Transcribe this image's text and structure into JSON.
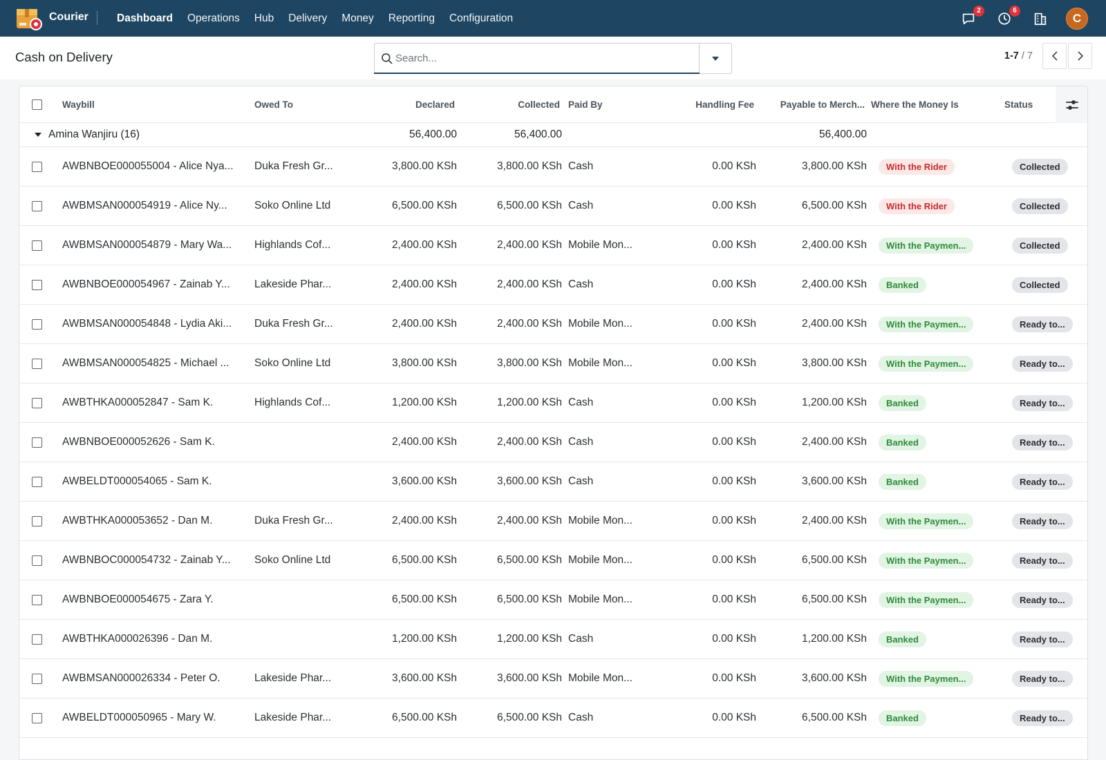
{
  "app": {
    "name": "Courier",
    "menu": [
      "Dashboard",
      "Operations",
      "Hub",
      "Delivery",
      "Money",
      "Reporting",
      "Configuration"
    ],
    "active_menu": "Dashboard",
    "systray": {
      "messages_count": "2",
      "activities_count": "6",
      "avatar_initial": "C"
    }
  },
  "control": {
    "title": "Cash on Delivery",
    "search_placeholder": "Search...",
    "pager_range": "1-7",
    "pager_total": "/ 7"
  },
  "columns": [
    "Waybill",
    "Owed To",
    "Declared",
    "Collected",
    "Paid By",
    "Handling Fee",
    "Payable to Merch...",
    "Where the Money Is",
    "Status"
  ],
  "group": {
    "label": "Amina Wanjiru (16)",
    "declared": "56,400.00",
    "collected": "56,400.00",
    "payable": "56,400.00"
  },
  "rows": [
    {
      "waybill": "AWBNBOE000055004 - Alice Nya...",
      "owed_to": "Duka Fresh Gr...",
      "declared": "3,800.00 KSh",
      "collected": "3,800.00 KSh",
      "paid_by": "Cash",
      "fee": "0.00 KSh",
      "payable": "3,800.00 KSh",
      "where": "With the Rider",
      "where_tone": "red",
      "status": "Collected"
    },
    {
      "waybill": "AWBMSAN000054919 - Alice Ny...",
      "owed_to": "Soko Online Ltd",
      "declared": "6,500.00 KSh",
      "collected": "6,500.00 KSh",
      "paid_by": "Cash",
      "fee": "0.00 KSh",
      "payable": "6,500.00 KSh",
      "where": "With the Rider",
      "where_tone": "red",
      "status": "Collected"
    },
    {
      "waybill": "AWBMSAN000054879 - Mary Wa...",
      "owed_to": "Highlands Cof...",
      "declared": "2,400.00 KSh",
      "collected": "2,400.00 KSh",
      "paid_by": "Mobile Mon...",
      "fee": "0.00 KSh",
      "payable": "2,400.00 KSh",
      "where": "With the Paymen...",
      "where_tone": "green",
      "status": "Collected"
    },
    {
      "waybill": "AWBNBOE000054967 - Zainab Y...",
      "owed_to": "Lakeside Phar...",
      "declared": "2,400.00 KSh",
      "collected": "2,400.00 KSh",
      "paid_by": "Cash",
      "fee": "0.00 KSh",
      "payable": "2,400.00 KSh",
      "where": "Banked",
      "where_tone": "green",
      "status": "Collected"
    },
    {
      "waybill": "AWBMSAN000054848 - Lydia Aki...",
      "owed_to": "Duka Fresh Gr...",
      "declared": "2,400.00 KSh",
      "collected": "2,400.00 KSh",
      "paid_by": "Mobile Mon...",
      "fee": "0.00 KSh",
      "payable": "2,400.00 KSh",
      "where": "With the Paymen...",
      "where_tone": "green",
      "status": "Ready to..."
    },
    {
      "waybill": "AWBMSAN000054825 - Michael ...",
      "owed_to": "Soko Online Ltd",
      "declared": "3,800.00 KSh",
      "collected": "3,800.00 KSh",
      "paid_by": "Mobile Mon...",
      "fee": "0.00 KSh",
      "payable": "3,800.00 KSh",
      "where": "With the Paymen...",
      "where_tone": "green",
      "status": "Ready to..."
    },
    {
      "waybill": "AWBTHKA000052847 - Sam K.",
      "owed_to": "Highlands Cof...",
      "declared": "1,200.00 KSh",
      "collected": "1,200.00 KSh",
      "paid_by": "Cash",
      "fee": "0.00 KSh",
      "payable": "1,200.00 KSh",
      "where": "Banked",
      "where_tone": "green",
      "status": "Ready to..."
    },
    {
      "waybill": "AWBNBOE000052626 - Sam K.",
      "owed_to": "",
      "declared": "2,400.00 KSh",
      "collected": "2,400.00 KSh",
      "paid_by": "Cash",
      "fee": "0.00 KSh",
      "payable": "2,400.00 KSh",
      "where": "Banked",
      "where_tone": "green",
      "status": "Ready to..."
    },
    {
      "waybill": "AWBELDT000054065 - Sam K.",
      "owed_to": "",
      "declared": "3,600.00 KSh",
      "collected": "3,600.00 KSh",
      "paid_by": "Cash",
      "fee": "0.00 KSh",
      "payable": "3,600.00 KSh",
      "where": "Banked",
      "where_tone": "green",
      "status": "Ready to..."
    },
    {
      "waybill": "AWBTHKA000053652 - Dan M.",
      "owed_to": "Duka Fresh Gr...",
      "declared": "2,400.00 KSh",
      "collected": "2,400.00 KSh",
      "paid_by": "Mobile Mon...",
      "fee": "0.00 KSh",
      "payable": "2,400.00 KSh",
      "where": "With the Paymen...",
      "where_tone": "green",
      "status": "Ready to..."
    },
    {
      "waybill": "AWBNBOC000054732 - Zainab Y...",
      "owed_to": "Soko Online Ltd",
      "declared": "6,500.00 KSh",
      "collected": "6,500.00 KSh",
      "paid_by": "Mobile Mon...",
      "fee": "0.00 KSh",
      "payable": "6,500.00 KSh",
      "where": "With the Paymen...",
      "where_tone": "green",
      "status": "Ready to..."
    },
    {
      "waybill": "AWBNBOE000054675 - Zara Y.",
      "owed_to": "",
      "declared": "6,500.00 KSh",
      "collected": "6,500.00 KSh",
      "paid_by": "Mobile Mon...",
      "fee": "0.00 KSh",
      "payable": "6,500.00 KSh",
      "where": "With the Paymen...",
      "where_tone": "green",
      "status": "Ready to..."
    },
    {
      "waybill": "AWBTHKA000026396 - Dan M.",
      "owed_to": "",
      "declared": "1,200.00 KSh",
      "collected": "1,200.00 KSh",
      "paid_by": "Cash",
      "fee": "0.00 KSh",
      "payable": "1,200.00 KSh",
      "where": "Banked",
      "where_tone": "green",
      "status": "Ready to..."
    },
    {
      "waybill": "AWBMSAN000026334 - Peter O.",
      "owed_to": "Lakeside Phar...",
      "declared": "3,600.00 KSh",
      "collected": "3,600.00 KSh",
      "paid_by": "Mobile Mon...",
      "fee": "0.00 KSh",
      "payable": "3,600.00 KSh",
      "where": "With the Paymen...",
      "where_tone": "green",
      "status": "Ready to..."
    },
    {
      "waybill": "AWBELDT000050965 - Mary W.",
      "owed_to": "Lakeside Phar...",
      "declared": "6,500.00 KSh",
      "collected": "6,500.00 KSh",
      "paid_by": "Cash",
      "fee": "0.00 KSh",
      "payable": "6,500.00 KSh",
      "where": "Banked",
      "where_tone": "green",
      "status": "Ready to..."
    }
  ],
  "colors": {
    "navbar": "#1e4662",
    "badge_red": "#c62b2b",
    "badge_green": "#2e8b3a",
    "avatar": "#c8671f"
  }
}
